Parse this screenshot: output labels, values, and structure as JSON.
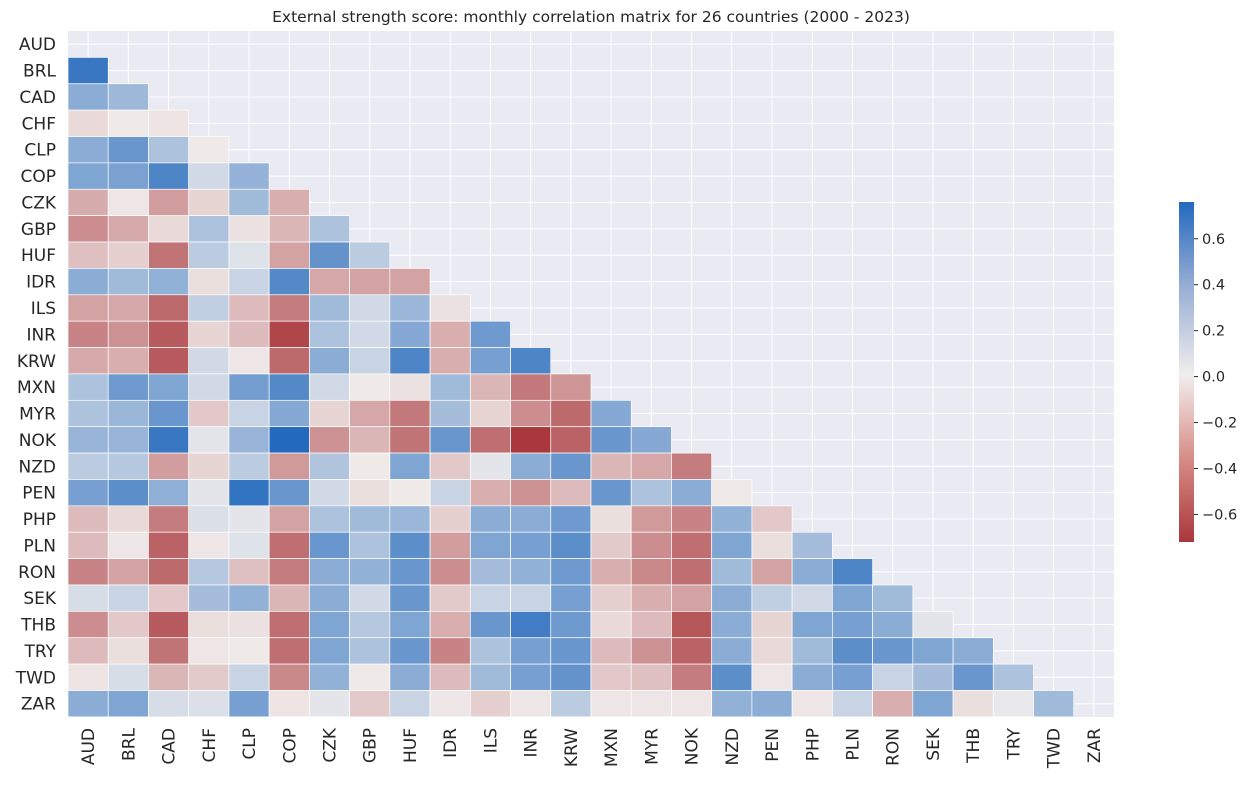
{
  "chart_data": {
    "type": "heatmap",
    "title": "External strength score: monthly correlation matrix for 26 countries (2000 - 2023)",
    "xlabel": "",
    "ylabel": "",
    "categories": [
      "AUD",
      "BRL",
      "CAD",
      "CHF",
      "CLP",
      "COP",
      "CZK",
      "GBP",
      "HUF",
      "IDR",
      "ILS",
      "INR",
      "KRW",
      "MXN",
      "MYR",
      "NOK",
      "NZD",
      "PEN",
      "PHP",
      "PLN",
      "RON",
      "SEK",
      "THB",
      "TRY",
      "TWD",
      "ZAR"
    ],
    "mask": "upper triangle and diagonal hidden",
    "colormap": "diverging red-white-blue (vlag)",
    "vlim": [
      -0.72,
      0.76
    ],
    "colorbar_ticks": [
      0.6,
      0.4,
      0.2,
      0.0,
      -0.2,
      -0.4,
      -0.6
    ],
    "colorbar_tick_labels": [
      "0.6",
      "0.4",
      "0.2",
      "0.0",
      "−0.2",
      "−0.4",
      "−0.6"
    ],
    "colors": {
      "neg": "#a9373b",
      "mid": "#f1eeed",
      "pos": "#2369bd",
      "background": "#eaeaf2"
    },
    "lower_triangle": [
      [],
      [
        0.68
      ],
      [
        0.38,
        0.31
      ],
      [
        -0.08,
        -0.02,
        -0.04
      ],
      [
        0.38,
        0.5,
        0.25,
        -0.02
      ],
      [
        0.42,
        0.44,
        0.6,
        0.12,
        0.34
      ],
      [
        -0.26,
        -0.03,
        -0.32,
        -0.1,
        0.3,
        -0.25
      ],
      [
        -0.38,
        -0.27,
        -0.08,
        0.25,
        -0.05,
        -0.22,
        0.25
      ],
      [
        -0.18,
        -0.12,
        -0.48,
        0.2,
        0.07,
        -0.3,
        0.52,
        0.2
      ],
      [
        0.38,
        0.3,
        0.35,
        -0.06,
        0.15,
        0.58,
        -0.28,
        -0.3,
        -0.3
      ],
      [
        -0.3,
        -0.28,
        -0.52,
        0.18,
        -0.2,
        -0.45,
        0.3,
        0.12,
        0.32,
        -0.05
      ],
      [
        -0.42,
        -0.36,
        -0.58,
        -0.1,
        -0.2,
        -0.66,
        0.25,
        0.12,
        0.4,
        -0.25,
        0.48
      ],
      [
        -0.27,
        -0.25,
        -0.58,
        0.12,
        -0.03,
        -0.52,
        0.38,
        0.15,
        0.6,
        -0.25,
        0.45,
        0.6
      ],
      [
        0.25,
        0.48,
        0.42,
        0.12,
        0.46,
        0.58,
        0.12,
        -0.02,
        -0.05,
        0.3,
        -0.22,
        -0.46,
        -0.35
      ],
      [
        0.25,
        0.32,
        0.5,
        -0.15,
        0.15,
        0.4,
        -0.1,
        -0.28,
        -0.46,
        0.28,
        -0.1,
        -0.38,
        -0.52,
        0.4
      ],
      [
        0.33,
        0.33,
        0.68,
        0.05,
        0.33,
        0.76,
        -0.36,
        -0.22,
        -0.48,
        0.5,
        -0.5,
        -0.72,
        -0.55,
        0.5,
        0.4
      ],
      [
        0.2,
        0.22,
        -0.32,
        -0.1,
        0.2,
        -0.33,
        0.24,
        -0.02,
        0.42,
        -0.15,
        0.05,
        0.38,
        0.5,
        -0.22,
        -0.28,
        -0.45
      ],
      [
        0.45,
        0.55,
        0.36,
        0.05,
        0.7,
        0.5,
        0.12,
        -0.06,
        -0.02,
        0.15,
        -0.25,
        -0.36,
        -0.2,
        0.5,
        0.25,
        0.38,
        -0.02
      ],
      [
        -0.2,
        -0.08,
        -0.45,
        0.08,
        0.05,
        -0.3,
        0.25,
        0.3,
        0.32,
        -0.12,
        0.38,
        0.38,
        0.48,
        -0.06,
        -0.33,
        -0.42,
        0.35,
        -0.15
      ],
      [
        -0.2,
        -0.03,
        -0.55,
        -0.03,
        0.07,
        -0.5,
        0.5,
        0.25,
        0.55,
        -0.32,
        0.42,
        0.45,
        0.55,
        -0.14,
        -0.38,
        -0.5,
        0.42,
        -0.06,
        0.28
      ],
      [
        -0.42,
        -0.3,
        -0.52,
        0.22,
        -0.18,
        -0.45,
        0.38,
        0.35,
        0.5,
        -0.38,
        0.28,
        0.35,
        0.48,
        -0.25,
        -0.4,
        -0.5,
        0.3,
        -0.3,
        0.38,
        0.6
      ],
      [
        0.1,
        0.15,
        -0.15,
        0.28,
        0.35,
        -0.22,
        0.38,
        0.12,
        0.5,
        -0.14,
        0.15,
        0.15,
        0.45,
        -0.12,
        -0.25,
        -0.3,
        0.38,
        0.18,
        0.12,
        0.42,
        0.3
      ],
      [
        -0.38,
        -0.15,
        -0.58,
        -0.06,
        -0.05,
        -0.5,
        0.42,
        0.22,
        0.42,
        -0.25,
        0.5,
        0.65,
        0.48,
        -0.08,
        -0.2,
        -0.6,
        0.38,
        -0.1,
        0.42,
        0.45,
        0.38,
        0.05
      ],
      [
        -0.2,
        -0.06,
        -0.48,
        -0.03,
        -0.02,
        -0.5,
        0.42,
        0.25,
        0.5,
        -0.42,
        0.25,
        0.45,
        0.5,
        -0.2,
        -0.36,
        -0.55,
        0.38,
        -0.08,
        0.3,
        0.55,
        0.5,
        0.42,
        0.38
      ],
      [
        -0.04,
        0.1,
        -0.22,
        -0.14,
        0.15,
        -0.4,
        0.35,
        -0.02,
        0.38,
        -0.2,
        0.3,
        0.45,
        0.52,
        -0.15,
        -0.18,
        -0.45,
        0.55,
        -0.03,
        0.38,
        0.45,
        0.15,
        0.28,
        0.5,
        0.25
      ],
      [
        0.38,
        0.42,
        0.1,
        0.08,
        0.45,
        -0.04,
        0.05,
        -0.14,
        0.15,
        -0.03,
        -0.12,
        -0.03,
        0.2,
        -0.03,
        -0.03,
        -0.03,
        0.35,
        0.38,
        -0.03,
        0.15,
        -0.25,
        0.42,
        -0.06,
        0.03,
        0.3
      ]
    ]
  }
}
